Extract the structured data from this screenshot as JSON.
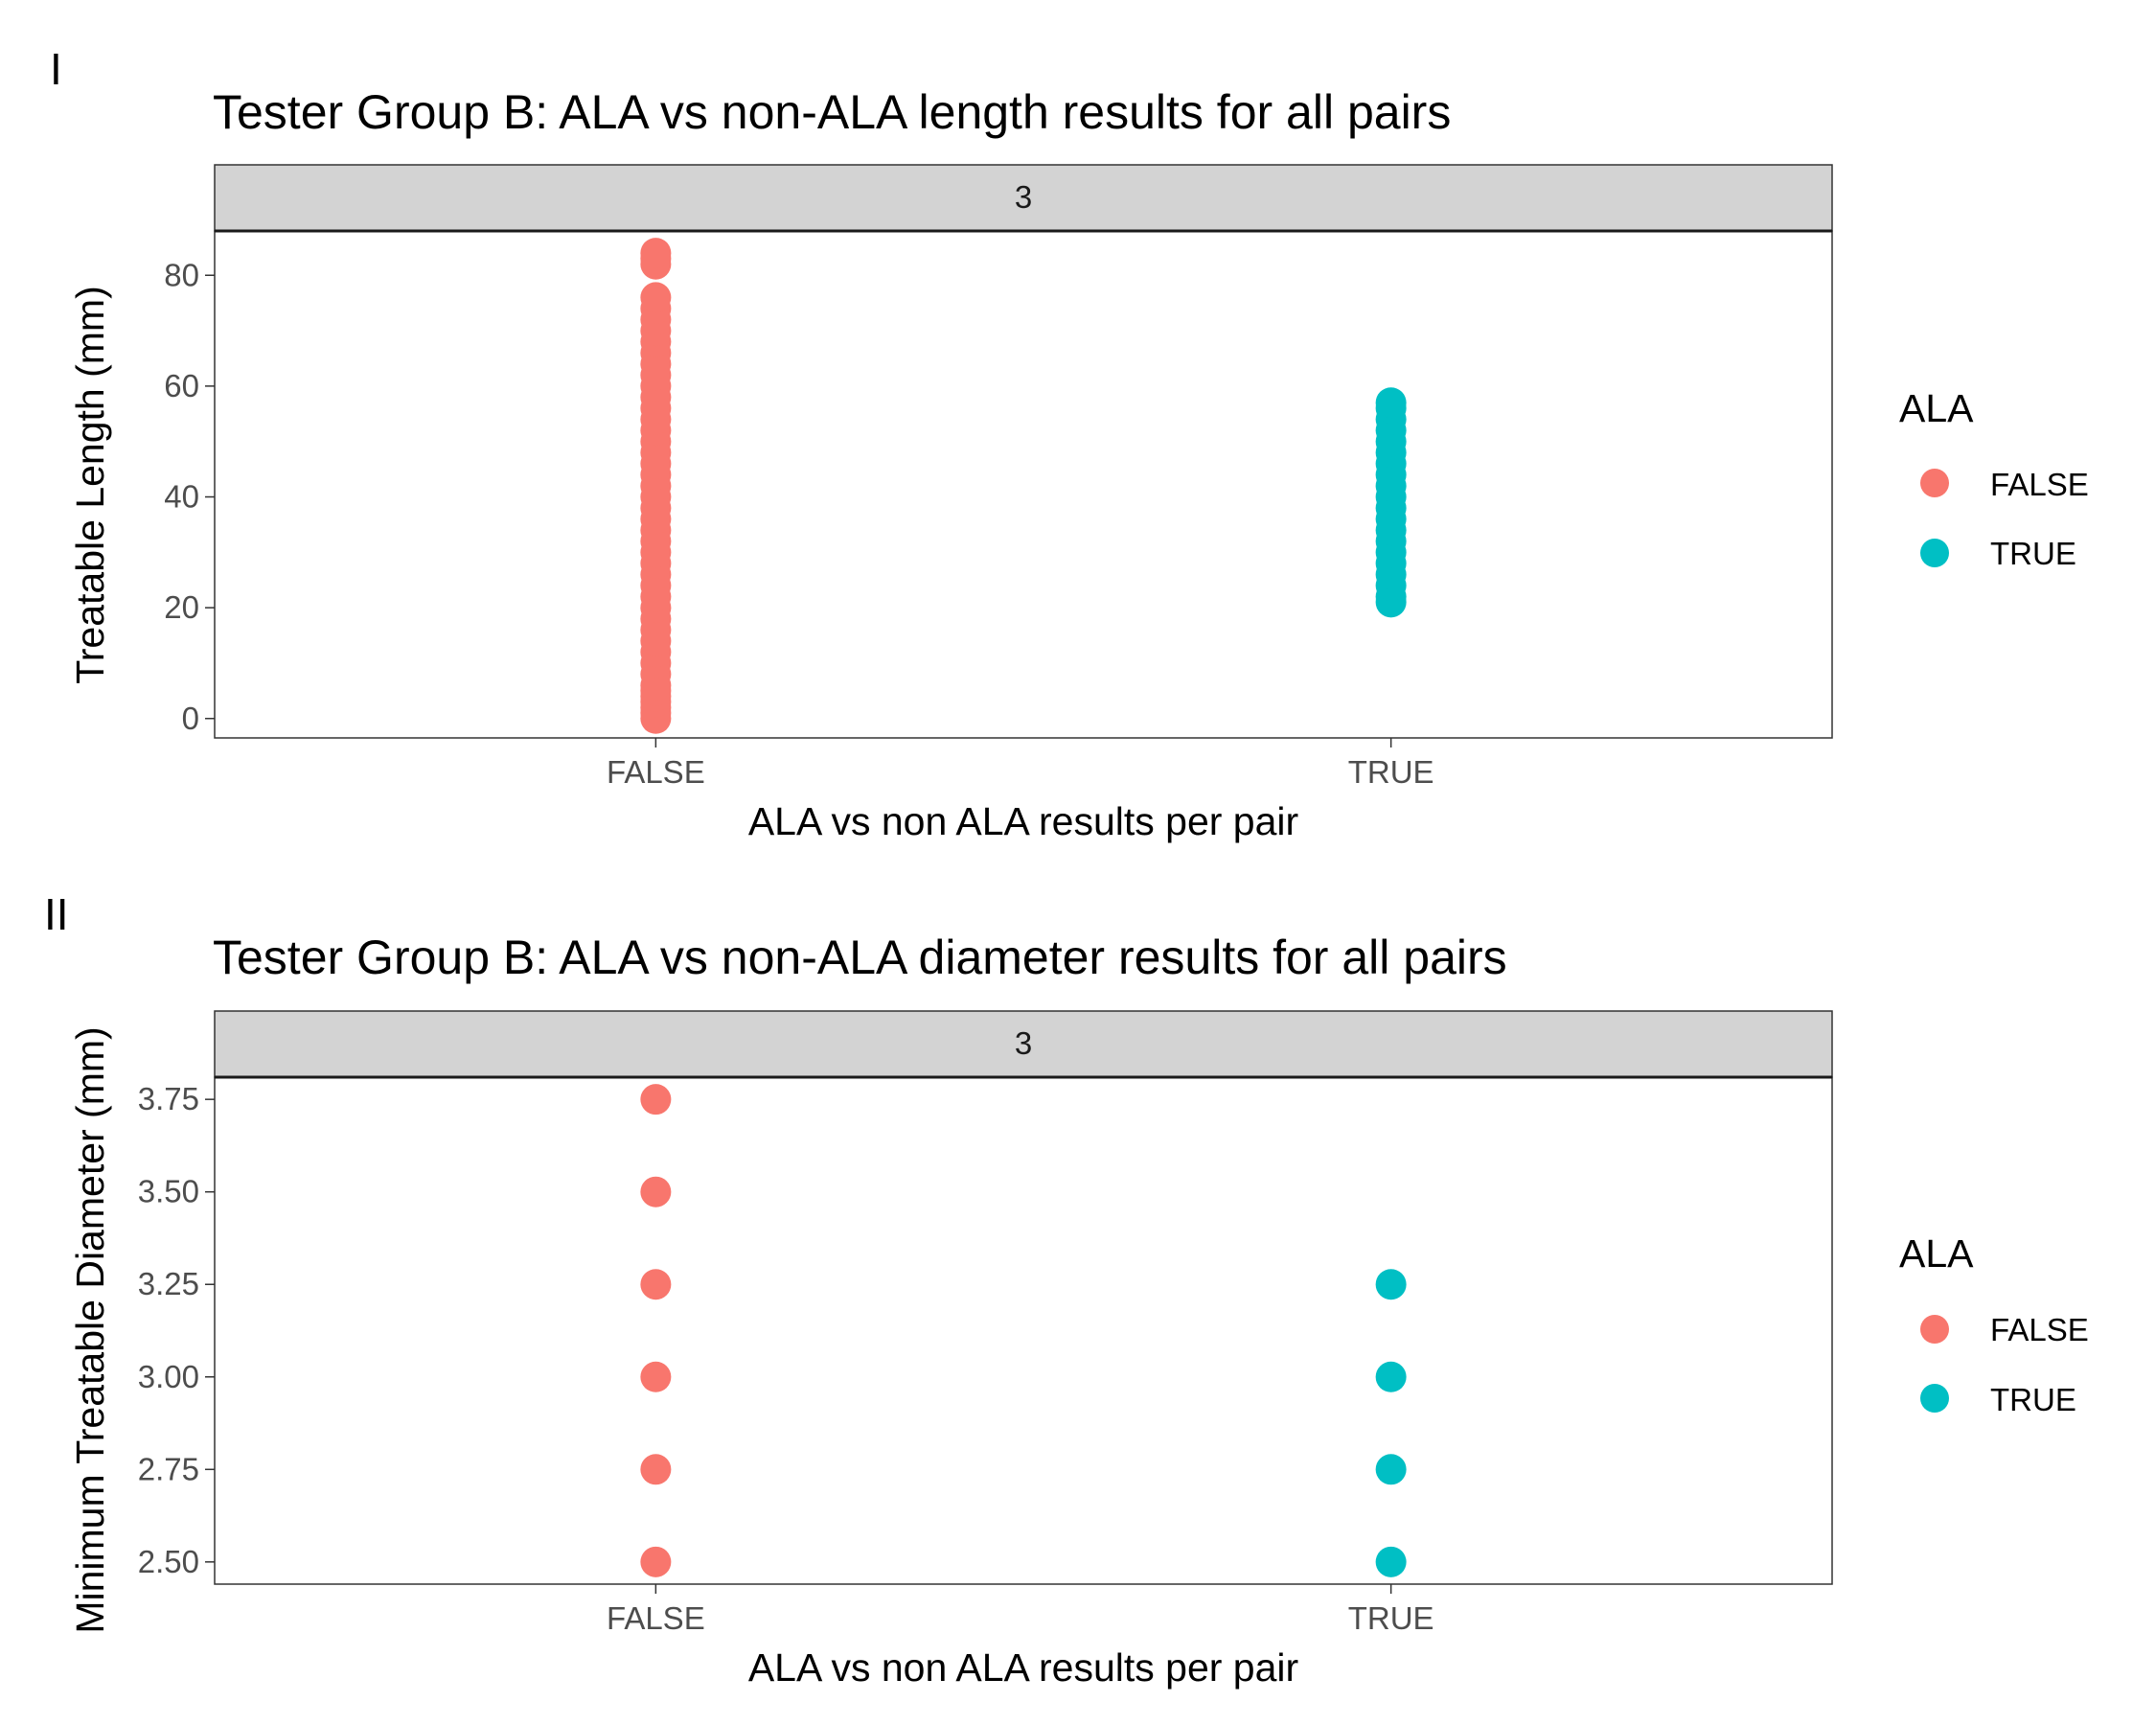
{
  "figure": {
    "background": "#ffffff"
  },
  "panels": [
    {
      "tag": "I",
      "legend_title": "ALA"
    },
    {
      "tag": "II",
      "legend_title": "ALA"
    }
  ],
  "chart_data": [
    {
      "type": "scatter",
      "title": "Tester Group B: ALA vs non-ALA length results for all pairs",
      "facet_label": "3",
      "xlabel": "ALA vs non ALA results per pair",
      "ylabel": "Treatable Length (mm)",
      "categories": [
        "FALSE",
        "TRUE"
      ],
      "ylim": [
        -3.5,
        88
      ],
      "yticks": [
        0,
        20,
        40,
        60,
        80
      ],
      "ytick_labels": [
        "0",
        "20",
        "40",
        "60",
        "80"
      ],
      "grid": false,
      "legend": {
        "title": "ALA",
        "position": "right",
        "entries": [
          "FALSE",
          "TRUE"
        ]
      },
      "colors": {
        "FALSE": "#F8766D",
        "TRUE": "#00BFC4"
      },
      "series": [
        {
          "name": "FALSE",
          "x": "FALSE",
          "values": [
            0,
            1,
            2,
            3,
            4,
            5,
            6,
            8,
            10,
            12,
            14,
            16,
            18,
            20,
            22,
            24,
            26,
            28,
            30,
            32,
            34,
            36,
            38,
            40,
            42,
            44,
            46,
            48,
            50,
            52,
            54,
            56,
            58,
            60,
            62,
            64,
            66,
            68,
            70,
            72,
            74,
            76,
            82,
            83,
            84
          ]
        },
        {
          "name": "TRUE",
          "x": "TRUE",
          "values": [
            21,
            22,
            24,
            26,
            28,
            30,
            32,
            34,
            36,
            38,
            40,
            42,
            44,
            46,
            48,
            50,
            52,
            54,
            56,
            57
          ]
        }
      ]
    },
    {
      "type": "scatter",
      "title": "Tester Group B: ALA vs non-ALA diameter results for all pairs",
      "facet_label": "3",
      "xlabel": "ALA vs non ALA results per pair",
      "ylabel": "Minimum Treatable Diameter (mm)",
      "categories": [
        "FALSE",
        "TRUE"
      ],
      "ylim": [
        2.44,
        3.81
      ],
      "yticks": [
        2.5,
        2.75,
        3.0,
        3.25,
        3.5,
        3.75
      ],
      "ytick_labels": [
        "2.50",
        "2.75",
        "3.00",
        "3.25",
        "3.50",
        "3.75"
      ],
      "grid": false,
      "legend": {
        "title": "ALA",
        "position": "right",
        "entries": [
          "FALSE",
          "TRUE"
        ]
      },
      "colors": {
        "FALSE": "#F8766D",
        "TRUE": "#00BFC4"
      },
      "series": [
        {
          "name": "FALSE",
          "x": "FALSE",
          "values": [
            2.5,
            2.75,
            3.0,
            3.25,
            3.5,
            3.75
          ]
        },
        {
          "name": "TRUE",
          "x": "TRUE",
          "values": [
            2.5,
            2.75,
            3.0,
            3.25
          ]
        }
      ]
    }
  ]
}
